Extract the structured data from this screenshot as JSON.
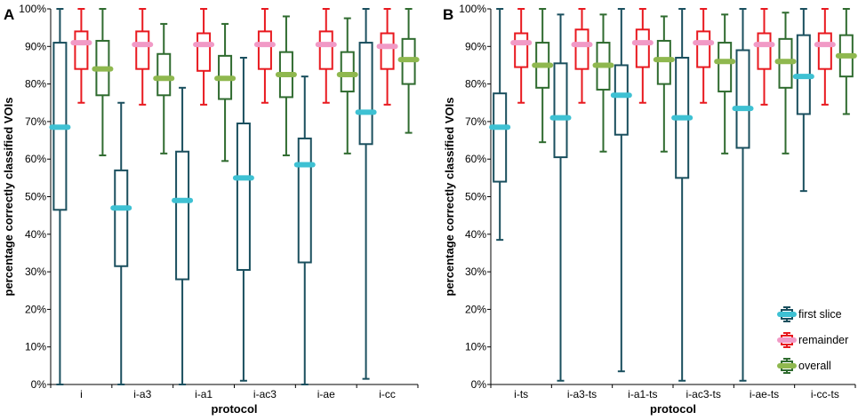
{
  "chart_data": [
    {
      "panel": "A",
      "type": "box",
      "xlabel": "protocol",
      "ylabel": "percentage correctly classified VOIs",
      "ylim": [
        0,
        100
      ],
      "yticks": [
        "0%",
        "10%",
        "20%",
        "30%",
        "40%",
        "50%",
        "60%",
        "70%",
        "80%",
        "90%",
        "100%"
      ],
      "categories": [
        "i",
        "i-a3",
        "i-a1",
        "i-ac3",
        "i-ae",
        "i-cc"
      ],
      "series": [
        {
          "name": "first slice",
          "color": "#1a4f5e",
          "median_color": "#3ec1d3",
          "boxes": [
            {
              "min": 0,
              "q1": 46.5,
              "median": 68.5,
              "q3": 91,
              "max": 100
            },
            {
              "min": 0,
              "q1": 31.5,
              "median": 47,
              "q3": 57,
              "max": 75
            },
            {
              "min": 0,
              "q1": 28,
              "median": 49,
              "q3": 62,
              "max": 79
            },
            {
              "min": 1,
              "q1": 30.5,
              "median": 55,
              "q3": 69.5,
              "max": 87
            },
            {
              "min": 0,
              "q1": 32.5,
              "median": 58.5,
              "q3": 65.5,
              "max": 82
            },
            {
              "min": 1.5,
              "q1": 64,
              "median": 72.5,
              "q3": 91,
              "max": 100
            }
          ]
        },
        {
          "name": "remainder",
          "color": "#e8191f",
          "median_color": "#f19ac6",
          "boxes": [
            {
              "min": 75,
              "q1": 84,
              "median": 91,
              "q3": 94,
              "max": 100
            },
            {
              "min": 74.5,
              "q1": 84,
              "median": 90.5,
              "q3": 94,
              "max": 100
            },
            {
              "min": 74.5,
              "q1": 83.5,
              "median": 90.5,
              "q3": 93.5,
              "max": 100
            },
            {
              "min": 75,
              "q1": 84,
              "median": 90.5,
              "q3": 94,
              "max": 100
            },
            {
              "min": 75,
              "q1": 84,
              "median": 90.5,
              "q3": 94,
              "max": 100
            },
            {
              "min": 74.5,
              "q1": 84,
              "median": 90,
              "q3": 93.5,
              "max": 100
            }
          ]
        },
        {
          "name": "overall",
          "color": "#2f6b2f",
          "median_color": "#8fb84f",
          "boxes": [
            {
              "min": 61,
              "q1": 77,
              "median": 84,
              "q3": 91.5,
              "max": 100
            },
            {
              "min": 61.5,
              "q1": 77,
              "median": 81.5,
              "q3": 88,
              "max": 96
            },
            {
              "min": 59.5,
              "q1": 76,
              "median": 81.5,
              "q3": 87.5,
              "max": 96
            },
            {
              "min": 61,
              "q1": 76.5,
              "median": 82.5,
              "q3": 88.5,
              "max": 98
            },
            {
              "min": 61.5,
              "q1": 78,
              "median": 82.5,
              "q3": 88.5,
              "max": 97.5
            },
            {
              "min": 67,
              "q1": 80,
              "median": 86.5,
              "q3": 92,
              "max": 100
            }
          ]
        }
      ]
    },
    {
      "panel": "B",
      "type": "box",
      "xlabel": "protocol",
      "ylabel": "percentage correctly classified VOIs",
      "ylim": [
        0,
        100
      ],
      "yticks": [
        "0%",
        "10%",
        "20%",
        "30%",
        "40%",
        "50%",
        "60%",
        "70%",
        "80%",
        "90%",
        "100%"
      ],
      "categories": [
        "i-ts",
        "i-a3-ts",
        "i-a1-ts",
        "i-ac3-ts",
        "i-ae-ts",
        "i-cc-ts"
      ],
      "legend": {
        "position": "bottom-right",
        "entries": [
          "first slice",
          "remainder",
          "overall"
        ]
      },
      "series": [
        {
          "name": "first slice",
          "color": "#1a4f5e",
          "median_color": "#3ec1d3",
          "boxes": [
            {
              "min": 38.5,
              "q1": 54,
              "median": 68.5,
              "q3": 77.5,
              "max": 100
            },
            {
              "min": 1,
              "q1": 60.5,
              "median": 71,
              "q3": 85.5,
              "max": 98.5
            },
            {
              "min": 3.5,
              "q1": 66.5,
              "median": 77,
              "q3": 85,
              "max": 100
            },
            {
              "min": 1,
              "q1": 55,
              "median": 71,
              "q3": 87,
              "max": 100
            },
            {
              "min": 1,
              "q1": 63,
              "median": 73.5,
              "q3": 89,
              "max": 100
            },
            {
              "min": 51.5,
              "q1": 72,
              "median": 82,
              "q3": 93,
              "max": 100
            }
          ]
        },
        {
          "name": "remainder",
          "color": "#e8191f",
          "median_color": "#f19ac6",
          "boxes": [
            {
              "min": 75,
              "q1": 84.5,
              "median": 91,
              "q3": 93.5,
              "max": 100
            },
            {
              "min": 75,
              "q1": 84,
              "median": 90.5,
              "q3": 94.5,
              "max": 100
            },
            {
              "min": 75,
              "q1": 84.5,
              "median": 91,
              "q3": 94.5,
              "max": 100
            },
            {
              "min": 75,
              "q1": 84.5,
              "median": 91,
              "q3": 94,
              "max": 100
            },
            {
              "min": 74.5,
              "q1": 84,
              "median": 90.5,
              "q3": 93.5,
              "max": 100
            },
            {
              "min": 74.5,
              "q1": 84,
              "median": 90.5,
              "q3": 93.5,
              "max": 100
            }
          ]
        },
        {
          "name": "overall",
          "color": "#2f6b2f",
          "median_color": "#8fb84f",
          "boxes": [
            {
              "min": 64.5,
              "q1": 79,
              "median": 85,
              "q3": 91,
              "max": 100
            },
            {
              "min": 62,
              "q1": 78.5,
              "median": 85,
              "q3": 91,
              "max": 98.5
            },
            {
              "min": 62,
              "q1": 80,
              "median": 86.5,
              "q3": 91.5,
              "max": 98
            },
            {
              "min": 61.5,
              "q1": 78,
              "median": 86,
              "q3": 91,
              "max": 98.5
            },
            {
              "min": 61.5,
              "q1": 79,
              "median": 86,
              "q3": 92,
              "max": 99
            },
            {
              "min": 72,
              "q1": 82,
              "median": 87.5,
              "q3": 93,
              "max": 100
            }
          ]
        }
      ]
    }
  ]
}
